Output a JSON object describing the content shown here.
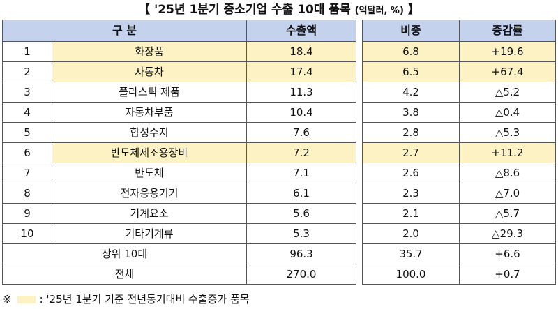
{
  "title": {
    "main": "【 '25년 1분기 중소기업 수출 10대 품목",
    "unit": "(억달러, %)",
    "close": "】"
  },
  "header": {
    "category": "구   분",
    "exports": "수출액",
    "share": "비중",
    "change": "증감률"
  },
  "rows": [
    {
      "rank": "1",
      "item": "화장품",
      "exports": "18.4",
      "share": "6.8",
      "change": "+19.6",
      "highlight": true
    },
    {
      "rank": "2",
      "item": "자동차",
      "exports": "17.4",
      "share": "6.5",
      "change": "+67.4",
      "highlight": true
    },
    {
      "rank": "3",
      "item": "플라스틱 제품",
      "exports": "11.3",
      "share": "4.2",
      "change": "△5.2",
      "highlight": false
    },
    {
      "rank": "4",
      "item": "자동차부품",
      "exports": "10.4",
      "share": "3.8",
      "change": "△0.4",
      "highlight": false
    },
    {
      "rank": "5",
      "item": "합성수지",
      "exports": "7.6",
      "share": "2.8",
      "change": "△5.3",
      "highlight": false
    },
    {
      "rank": "6",
      "item": "반도체제조용장비",
      "exports": "7.2",
      "share": "2.7",
      "change": "+11.2",
      "highlight": true
    },
    {
      "rank": "7",
      "item": "반도체",
      "exports": "7.1",
      "share": "2.6",
      "change": "△8.6",
      "highlight": false
    },
    {
      "rank": "8",
      "item": "전자응용기기",
      "exports": "6.1",
      "share": "2.3",
      "change": "△7.0",
      "highlight": false
    },
    {
      "rank": "9",
      "item": "기계요소",
      "exports": "5.6",
      "share": "2.1",
      "change": "△5.7",
      "highlight": false
    },
    {
      "rank": "10",
      "item": "기타기계류",
      "exports": "5.3",
      "share": "2.0",
      "change": "△29.3",
      "highlight": false
    }
  ],
  "summary": [
    {
      "label": "상위 10대",
      "exports": "96.3",
      "share": "35.7",
      "change": "+6.6"
    },
    {
      "label": "전체",
      "exports": "270.0",
      "share": "100.0",
      "change": "+0.7"
    }
  ],
  "note": {
    "mark": "※",
    "text": ": '25년 1분기 기준 전년동기대비 수출증가 품목"
  },
  "colors": {
    "header_bg": "#c5d2ee",
    "highlight_bg": "#fdf2c4"
  }
}
